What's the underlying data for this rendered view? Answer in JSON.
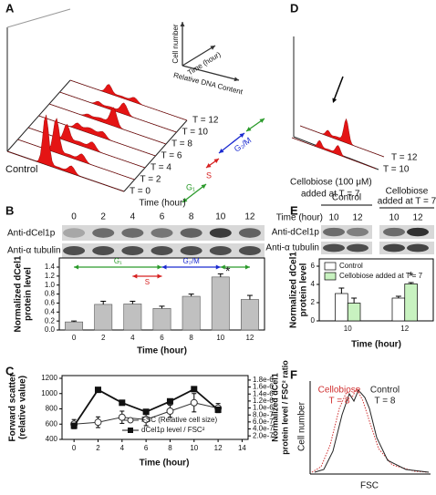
{
  "panel_labels": [
    "A",
    "B",
    "C",
    "D",
    "E",
    "F"
  ],
  "panel_a": {
    "axis_labels": {
      "y": "Cell number",
      "z": "Time (hour)",
      "x": "Relative DNA Content"
    },
    "times": [
      "T = 0",
      "T = 2",
      "T = 4",
      "T = 6",
      "T = 8",
      "T = 10",
      "T = 12"
    ],
    "phases": [
      {
        "label": "G₁",
        "color": "#2a9a2a"
      },
      {
        "label": "S",
        "color": "#d62020"
      },
      {
        "label": "G₂/M",
        "color": "#1a2ad0"
      }
    ],
    "label": "Control"
  },
  "panel_d": {
    "times": [
      "T = 10",
      "T = 12"
    ],
    "label": [
      "Cellobiose (100 μM)",
      "added at T = 7"
    ]
  },
  "blot_b": {
    "time_label": "Time (hour)",
    "times": [
      "0",
      "2",
      "4",
      "6",
      "8",
      "10",
      "12"
    ],
    "rows": [
      "Anti-dCel1p",
      "Anti-α tubulin"
    ]
  },
  "blot_e": {
    "groups": [
      [
        "Control"
      ],
      [
        "Cellobiose",
        "added at T = 7"
      ]
    ],
    "time_label": "Time (hour)",
    "times": [
      "10",
      "12",
      "10",
      "12"
    ],
    "rows": [
      "Anti-dCel1p",
      "Anti-α tubulin"
    ]
  },
  "panel_f": {
    "y_label": "Cell number",
    "x_label": "FSC",
    "curves": [
      {
        "name": "Cellobiose",
        "note": "T = 8",
        "color": "#d03030"
      },
      {
        "name": "Control",
        "note": "T = 8",
        "color": "#222222"
      }
    ]
  },
  "chart_data": [
    {
      "type": "bar",
      "y_label": [
        "Normalized dCel1",
        "protein level"
      ],
      "x_label": "Time (hour)",
      "categories": [
        "0",
        "2",
        "4",
        "6",
        "8",
        "10",
        "12"
      ],
      "values": [
        0.18,
        0.57,
        0.58,
        0.48,
        0.75,
        1.18,
        0.68
      ],
      "errors": [
        0.02,
        0.07,
        0.06,
        0.05,
        0.05,
        0.07,
        0.09
      ],
      "color": "#c0c0c0",
      "ylim": [
        0,
        1.4
      ],
      "yticks": [
        {
          "value": 0,
          "label": "0.0"
        },
        0.2,
        0.4,
        0.6,
        0.8,
        {
          "value": 1,
          "label": "1.0"
        },
        1.2,
        1.4
      ],
      "phases": [
        {
          "label": "G₁",
          "from": "0",
          "to": "6",
          "color": "#2a9a2a"
        },
        {
          "label": "S",
          "from": "4",
          "to": "6",
          "color": "#d62020"
        },
        {
          "label": "G₂/M",
          "from": "6",
          "to": "10",
          "color": "#1a2ad0"
        },
        {
          "from": "10",
          "to": "12",
          "color": "#2a9a2a"
        }
      ],
      "annotations": [
        {
          "text": "*",
          "category": "10"
        }
      ]
    },
    {
      "type": "line",
      "x_label": "Time (hour)",
      "y_label": [
        "Forward scatter",
        "(relative value)"
      ],
      "y2_label": [
        "Normalized dCel1",
        "protein level / FSC² ratio"
      ],
      "x": [
        0,
        2,
        4,
        6,
        8,
        10,
        12
      ],
      "xlim": [
        -1,
        14.5
      ],
      "xticks": [
        0,
        2,
        4,
        6,
        8,
        10,
        12,
        14
      ],
      "ylim": [
        400,
        1200
      ],
      "yticks": [
        400,
        600,
        800,
        1000,
        1200
      ],
      "y2lim": [
        1e-07,
        1.85e-06
      ],
      "y2ticks": [
        {
          "value": 2e-07,
          "label": "2.0e-7"
        },
        {
          "value": 4e-07,
          "label": "4.0e-7"
        },
        {
          "value": 6e-07,
          "label": "6.0e-7"
        },
        {
          "value": 8e-07,
          "label": "8.0e-7"
        },
        {
          "value": 1e-06,
          "label": "1.0e-6"
        },
        {
          "value": 1.2e-06,
          "label": "1.2e-6"
        },
        {
          "value": 1.4e-06,
          "label": "1.4e-6"
        },
        {
          "value": 1.6e-06,
          "label": "1.6e-6"
        },
        {
          "value": 1.8e-06,
          "label": "1.8e-6"
        }
      ],
      "series": [
        {
          "name": "FSC (Relative cell size)",
          "color": "#333333",
          "marker": "circle",
          "values": [
            600,
            625,
            690,
            660,
            770,
            880,
            810
          ],
          "errors": [
            60,
            70,
            80,
            80,
            80,
            120,
            60
          ]
        },
        {
          "name": "dCel1p level / FSC²",
          "color": "#111111",
          "marker": "square",
          "axis": "y2",
          "values": [
            4.9e-07,
            1.52e-06,
            1.15e-06,
            8.9e-07,
            1.19e-06,
            1.54e-06,
            9.5e-07
          ]
        }
      ]
    },
    {
      "type": "grouped_bar",
      "y_label": [
        "Normalized dCel1",
        "protein level"
      ],
      "x_label": "Time (hour)",
      "categories": [
        "10",
        "12"
      ],
      "ylim": [
        0,
        6
      ],
      "yticks": [
        0,
        2,
        4,
        6
      ],
      "series": [
        {
          "name": "Control",
          "color": "#ffffff",
          "values": [
            3,
            2.5
          ],
          "errors": [
            0.6,
            0.2
          ]
        },
        {
          "name": "Cellobiose added at T = 7",
          "color": "#c8f2c0",
          "values": [
            1.95,
            4.05
          ],
          "errors": [
            0.55,
            0.15
          ]
        }
      ],
      "annotations": [
        {
          "text": "*",
          "category": "12",
          "series": 1
        }
      ]
    }
  ]
}
